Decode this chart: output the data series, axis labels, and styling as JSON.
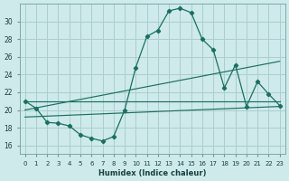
{
  "xlabel": "Humidex (Indice chaleur)",
  "bg_color": "#ceeaea",
  "grid_color": "#aacece",
  "line_color": "#1a7060",
  "xlim": [
    -0.5,
    23.5
  ],
  "ylim": [
    15.0,
    32.0
  ],
  "xticks": [
    0,
    1,
    2,
    3,
    4,
    5,
    6,
    7,
    8,
    9,
    10,
    11,
    12,
    13,
    14,
    15,
    16,
    17,
    18,
    19,
    20,
    21,
    22,
    23
  ],
  "yticks": [
    16,
    18,
    20,
    22,
    24,
    26,
    28,
    30
  ],
  "curve_x": [
    0,
    1,
    2,
    3,
    4,
    5,
    6,
    7,
    8,
    9,
    10,
    11,
    12,
    13,
    14,
    15,
    16,
    17,
    18,
    19,
    20,
    21,
    22,
    23
  ],
  "curve_y": [
    21.0,
    20.2,
    18.6,
    18.5,
    18.2,
    17.2,
    16.8,
    16.5,
    17.0,
    20.0,
    24.8,
    28.3,
    29.0,
    31.2,
    31.5,
    31.0,
    28.0,
    26.8,
    22.5,
    25.1,
    20.4,
    23.2,
    21.8,
    20.5
  ],
  "line1_x": [
    0,
    23
  ],
  "line1_y": [
    21.0,
    21.0
  ],
  "line2_x": [
    0,
    23
  ],
  "line2_y": [
    20.0,
    25.5
  ],
  "line3_x": [
    0,
    23
  ],
  "line3_y": [
    19.2,
    20.4
  ]
}
